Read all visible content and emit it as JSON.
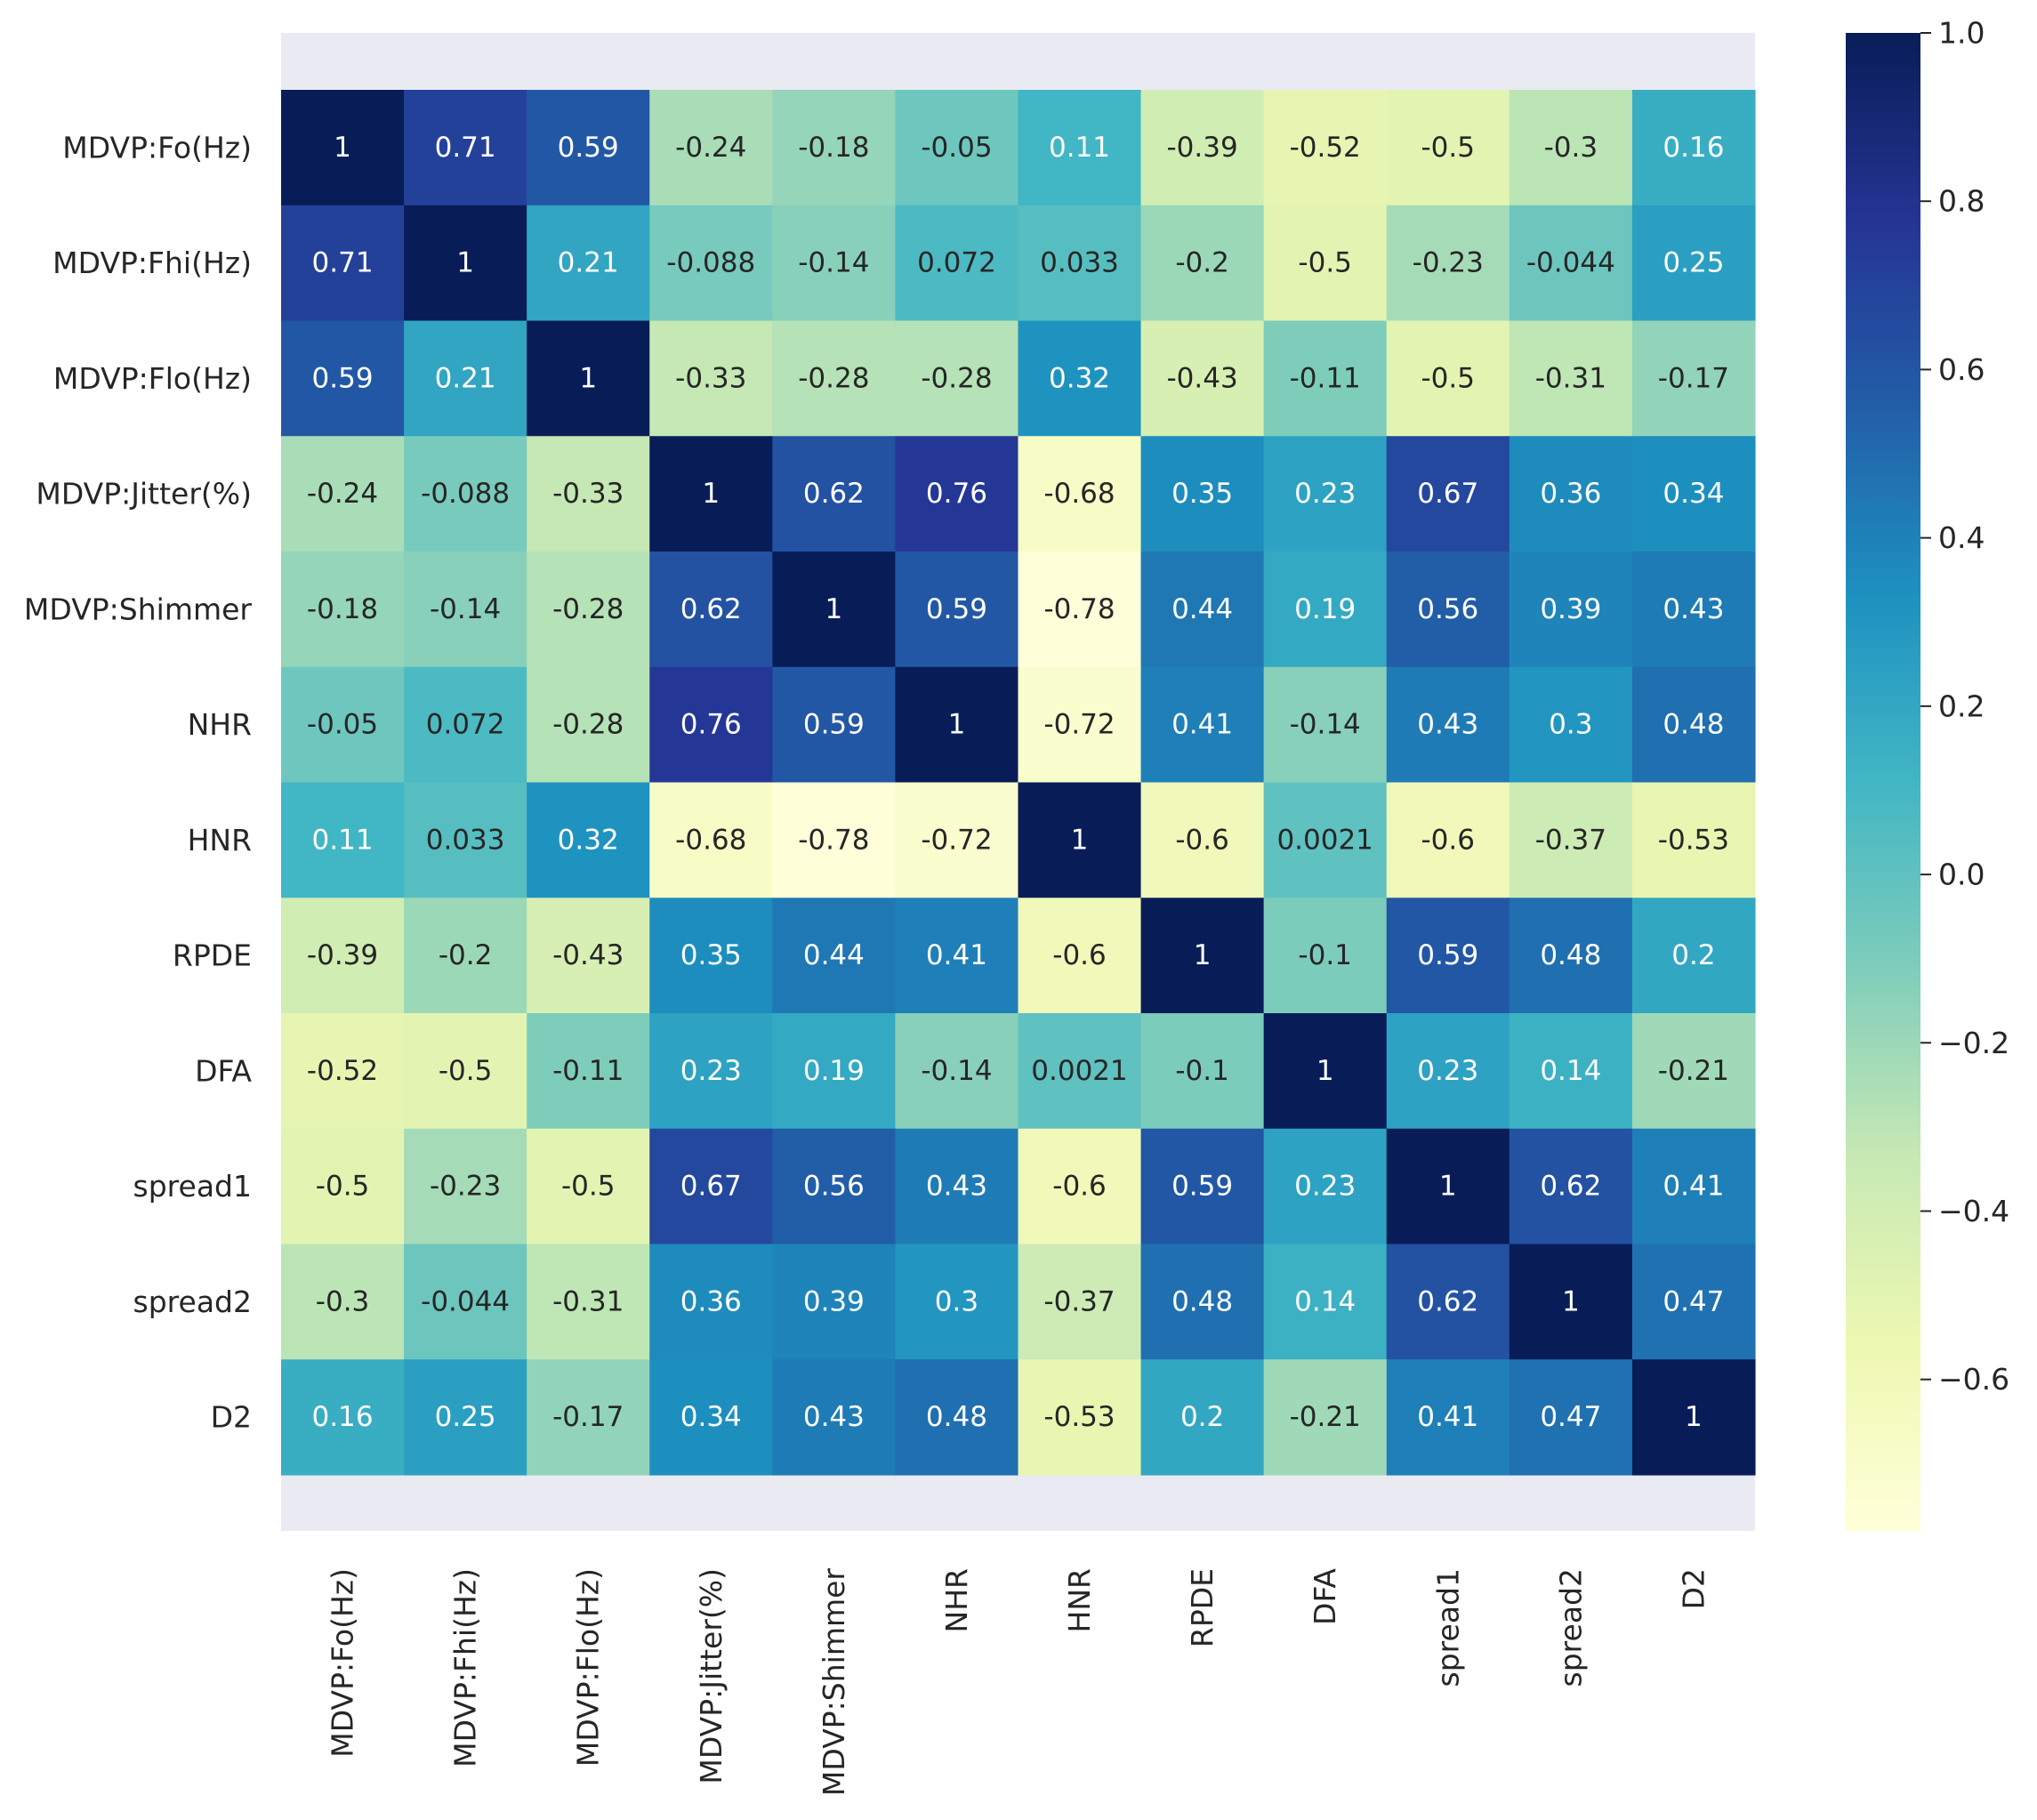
{
  "chart_data": {
    "type": "heatmap",
    "title": "",
    "xlabel": "",
    "ylabel": "",
    "labels": [
      "MDVP:Fo(Hz)",
      "MDVP:Fhi(Hz)",
      "MDVP:Flo(Hz)",
      "MDVP:Jitter(%)",
      "MDVP:Shimmer",
      "NHR",
      "HNR",
      "RPDE",
      "DFA",
      "spread1",
      "spread2",
      "D2"
    ],
    "cell_labels": [
      [
        "1",
        "0.71",
        "0.59",
        "-0.24",
        "-0.18",
        "-0.05",
        "0.11",
        "-0.39",
        "-0.52",
        "-0.5",
        "-0.3",
        "0.16"
      ],
      [
        "0.71",
        "1",
        "0.21",
        "-0.088",
        "-0.14",
        "0.072",
        "0.033",
        "-0.2",
        "-0.5",
        "-0.23",
        "-0.044",
        "0.25"
      ],
      [
        "0.59",
        "0.21",
        "1",
        "-0.33",
        "-0.28",
        "-0.28",
        "0.32",
        "-0.43",
        "-0.11",
        "-0.5",
        "-0.31",
        "-0.17"
      ],
      [
        "-0.24",
        "-0.088",
        "-0.33",
        "1",
        "0.62",
        "0.76",
        "-0.68",
        "0.35",
        "0.23",
        "0.67",
        "0.36",
        "0.34"
      ],
      [
        "-0.18",
        "-0.14",
        "-0.28",
        "0.62",
        "1",
        "0.59",
        "-0.78",
        "0.44",
        "0.19",
        "0.56",
        "0.39",
        "0.43"
      ],
      [
        "-0.05",
        "0.072",
        "-0.28",
        "0.76",
        "0.59",
        "1",
        "-0.72",
        "0.41",
        "-0.14",
        "0.43",
        "0.3",
        "0.48"
      ],
      [
        "0.11",
        "0.033",
        "0.32",
        "-0.68",
        "-0.78",
        "-0.72",
        "1",
        "-0.6",
        "0.0021",
        "-0.6",
        "-0.37",
        "-0.53"
      ],
      [
        "-0.39",
        "-0.2",
        "-0.43",
        "0.35",
        "0.44",
        "0.41",
        "-0.6",
        "1",
        "-0.1",
        "0.59",
        "0.48",
        "0.2"
      ],
      [
        "-0.52",
        "-0.5",
        "-0.11",
        "0.23",
        "0.19",
        "-0.14",
        "0.0021",
        "-0.1",
        "1",
        "0.23",
        "0.14",
        "-0.21"
      ],
      [
        "-0.5",
        "-0.23",
        "-0.5",
        "0.67",
        "0.56",
        "0.43",
        "-0.6",
        "0.59",
        "0.23",
        "1",
        "0.62",
        "0.41"
      ],
      [
        "-0.3",
        "-0.044",
        "-0.31",
        "0.36",
        "0.39",
        "0.3",
        "-0.37",
        "0.48",
        "0.14",
        "0.62",
        "1",
        "0.47"
      ],
      [
        "0.16",
        "0.25",
        "-0.17",
        "0.34",
        "0.43",
        "0.48",
        "-0.53",
        "0.2",
        "-0.21",
        "0.41",
        "0.47",
        "1"
      ]
    ],
    "colorbar": {
      "min": -0.78,
      "max": 1.0,
      "ticks": [
        1.0,
        0.8,
        0.6,
        0.4,
        0.2,
        0.0,
        -0.2,
        -0.4,
        -0.6
      ],
      "tick_labels": [
        "1.0",
        "0.8",
        "0.6",
        "0.4",
        "0.2",
        "0.0",
        "−0.2",
        "−0.4",
        "−0.6"
      ]
    },
    "colormap": "YlGnBu",
    "colormap_stops": [
      "#ffffd9",
      "#edf8b1",
      "#c7e9b4",
      "#7fcdbb",
      "#41b6c4",
      "#1d91c0",
      "#225ea8",
      "#253494",
      "#081d58"
    ]
  }
}
